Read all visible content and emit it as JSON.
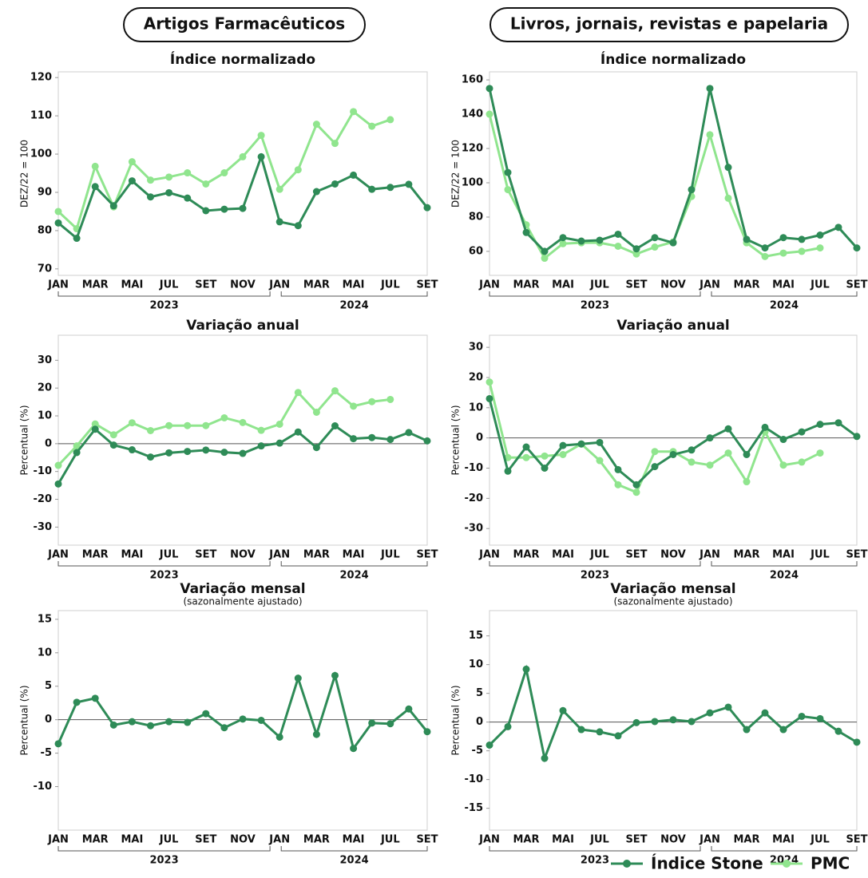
{
  "columns": [
    "Artigos Farmacêuticos",
    "Livros, jornais, revistas e papelaria"
  ],
  "chart_data": [
    {
      "type": "line",
      "title": "Índice normalizado",
      "ylabel": "DEZ/22 = 100",
      "categories": [
        "JAN",
        null,
        "MAR",
        null,
        "MAI",
        null,
        "JUL",
        null,
        "SET",
        null,
        "NOV",
        null,
        "JAN",
        null,
        "MAR",
        null,
        "MAI",
        null,
        "JUL",
        null,
        "SET"
      ],
      "years": [
        "2023",
        "2024"
      ],
      "ylim": [
        68.3,
        121.5
      ],
      "yticks": [
        70,
        80,
        90,
        100,
        110,
        120
      ],
      "zero_line": false,
      "series": [
        {
          "name": "Índice Stone",
          "color": "#2e8b57",
          "values": [
            82,
            78,
            91.5,
            86.5,
            93,
            88.8,
            89.9,
            88.5,
            85.2,
            85.6,
            85.8,
            99.3,
            82.3,
            81.3,
            90.2,
            92.2,
            94.5,
            90.8,
            91.3,
            92.1,
            86
          ]
        },
        {
          "name": "PMC",
          "color": "#90e58e",
          "values": [
            85,
            80.5,
            96.8,
            86.2,
            98,
            93.2,
            94,
            95.1,
            92.2,
            95.1,
            99.3,
            104.9,
            90.8,
            95.9,
            107.8,
            102.8,
            111.1,
            107.3,
            109,
            null,
            null
          ]
        }
      ]
    },
    {
      "type": "line",
      "title": "Variação anual",
      "ylabel": "Percentual (%)",
      "categories": [
        "JAN",
        null,
        "MAR",
        null,
        "MAI",
        null,
        "JUL",
        null,
        "SET",
        null,
        "NOV",
        null,
        "JAN",
        null,
        "MAR",
        null,
        "MAI",
        null,
        "JUL",
        null,
        "SET"
      ],
      "years": [
        "2023",
        "2024"
      ],
      "ylim": [
        -36.5,
        39
      ],
      "yticks": [
        -30,
        -20,
        -10,
        0,
        10,
        20,
        30
      ],
      "zero_line": true,
      "series": [
        {
          "color": "#2e8b57",
          "values": [
            -14.5,
            -3.2,
            5.2,
            -0.5,
            -2.2,
            -4.8,
            -3.3,
            -2.8,
            -2.3,
            -3.1,
            -3.5,
            -0.8,
            0.2,
            4.2,
            -1.4,
            6.4,
            1.8,
            2.2,
            1.5,
            4,
            1
          ]
        },
        {
          "color": "#90e58e",
          "values": [
            -7.8,
            -0.8,
            7.1,
            3.2,
            7.5,
            4.7,
            6.5,
            6.5,
            6.5,
            9.3,
            7.6,
            4.8,
            7,
            18.4,
            11.3,
            19,
            13.5,
            15.1,
            15.9,
            null,
            null
          ]
        }
      ]
    },
    {
      "type": "line",
      "title": "Variação mensal",
      "subtitle": "(sazonalmente ajustado)",
      "ylabel": "Percentual (%)",
      "categories": [
        "JAN",
        null,
        "MAR",
        null,
        "MAI",
        null,
        "JUL",
        null,
        "SET",
        null,
        "NOV",
        null,
        "JAN",
        null,
        "MAR",
        null,
        "MAI",
        null,
        "JUL",
        null,
        "SET"
      ],
      "years": [
        "2023",
        "2024"
      ],
      "ylim": [
        -16.5,
        16.3
      ],
      "yticks": [
        -10,
        -5,
        0,
        5,
        10,
        15
      ],
      "zero_line": true,
      "series": [
        {
          "color": "#2e8b57",
          "values": [
            -3.6,
            2.6,
            3.2,
            -0.8,
            -0.3,
            -0.9,
            -0.3,
            -0.4,
            0.9,
            -1.2,
            0.1,
            -0.1,
            -2.6,
            6.2,
            -2.2,
            6.6,
            -4.3,
            -0.5,
            -0.6,
            1.6,
            -1.8
          ]
        }
      ]
    },
    {
      "type": "line",
      "title": "Índice normalizado",
      "ylabel": "DEZ/22 = 100",
      "categories": [
        "JAN",
        null,
        "MAR",
        null,
        "MAI",
        null,
        "JUL",
        null,
        "SET",
        null,
        "NOV",
        null,
        "JAN",
        null,
        "MAR",
        null,
        "MAI",
        null,
        "JUL",
        null,
        "SET"
      ],
      "years": [
        "2023",
        "2024"
      ],
      "ylim": [
        46,
        164.7
      ],
      "yticks": [
        60,
        80,
        100,
        120,
        140,
        160
      ],
      "zero_line": false,
      "series": [
        {
          "color": "#2e8b57",
          "values": [
            155,
            106,
            71,
            60,
            68,
            66,
            66.5,
            70,
            61.5,
            68,
            65,
            96,
            155,
            109,
            67,
            62,
            68,
            67,
            69.5,
            74,
            62
          ]
        },
        {
          "color": "#90e58e",
          "values": [
            140,
            96,
            75.5,
            56,
            64.5,
            65,
            65,
            63,
            58.5,
            62.5,
            65.5,
            92,
            128,
            91,
            65,
            57,
            59,
            60,
            62,
            null,
            null
          ]
        }
      ]
    },
    {
      "type": "line",
      "title": "Variação anual",
      "ylabel": "Percentual (%)",
      "categories": [
        "JAN",
        null,
        "MAR",
        null,
        "MAI",
        null,
        "JUL",
        null,
        "SET",
        null,
        "NOV",
        null,
        "JAN",
        null,
        "MAR",
        null,
        "MAI",
        null,
        "JUL",
        null,
        "SET"
      ],
      "years": [
        "2023",
        "2024"
      ],
      "ylim": [
        -35.5,
        34
      ],
      "yticks": [
        -30,
        -20,
        -10,
        0,
        10,
        20,
        30
      ],
      "zero_line": true,
      "series": [
        {
          "color": "#2e8b57",
          "values": [
            13,
            -11,
            -3,
            -10,
            -2.5,
            -2,
            -1.5,
            -10.5,
            -15.5,
            -9.5,
            -5.5,
            -4,
            0,
            3,
            -5.5,
            3.5,
            -0.5,
            2,
            4.5,
            5,
            0.5
          ]
        },
        {
          "color": "#90e58e",
          "values": [
            18.5,
            -6.5,
            -6.5,
            -6,
            -5.5,
            -2,
            -7.5,
            -15.5,
            -18,
            -4.5,
            -4.5,
            -8,
            -9,
            -5,
            -14.5,
            2,
            -9,
            -8,
            -5,
            null,
            null
          ]
        }
      ]
    },
    {
      "type": "line",
      "title": "Variação mensal",
      "subtitle": "(sazonalmente ajustado)",
      "ylabel": "Percentual (%)",
      "categories": [
        "JAN",
        null,
        "MAR",
        null,
        "MAI",
        null,
        "JUL",
        null,
        "SET",
        null,
        "NOV",
        null,
        "JAN",
        null,
        "MAR",
        null,
        "MAI",
        null,
        "JUL",
        null,
        "SET"
      ],
      "years": [
        "2023",
        "2024"
      ],
      "ylim": [
        -18.8,
        19.4
      ],
      "yticks": [
        -15,
        -10,
        -5,
        0,
        5,
        10,
        15
      ],
      "zero_line": true,
      "series": [
        {
          "color": "#2e8b57",
          "values": [
            -4,
            -0.8,
            9.2,
            -6.3,
            2,
            -1.3,
            -1.7,
            -2.4,
            -0.1,
            0.1,
            0.4,
            0.1,
            1.6,
            2.6,
            -1.3,
            1.6,
            -1.3,
            1,
            0.6,
            -1.6,
            -3.5
          ]
        }
      ]
    }
  ]
}
